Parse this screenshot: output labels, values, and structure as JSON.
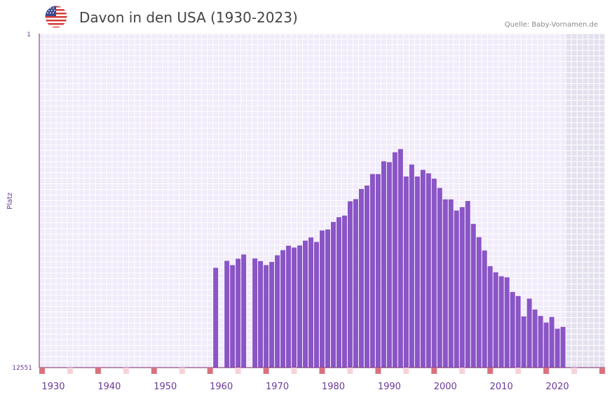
{
  "header": {
    "title": "Davon in den USA (1930-2023)",
    "source": "Quelle: Baby-Vornamen.de",
    "flag_icon": "us-flag-icon"
  },
  "colors": {
    "bar": "#8a55c6",
    "grid_bg": "#f1ebfa",
    "grid_line": "#ffffff",
    "axis": "#7a2a6a",
    "marker": "#d9727f",
    "marker_light": "#f6d3d8",
    "future_shade": "#e4e0ee",
    "tick_text": "#6a3a9a"
  },
  "chart_data": {
    "type": "bar",
    "title": "Davon in den USA (1930-2023)",
    "xlabel": "",
    "ylabel": "Platz",
    "y_axis_inverted": true,
    "ylim": [
      1,
      12551
    ],
    "y_tick_labels": [
      "1",
      "12551"
    ],
    "xlim": [
      1928,
      2029
    ],
    "x_tick_labels": [
      "1930",
      "1940",
      "1950",
      "1960",
      "1970",
      "1980",
      "1990",
      "2000",
      "2010",
      "2020"
    ],
    "x": [
      1959,
      1961,
      1962,
      1963,
      1964,
      1966,
      1967,
      1968,
      1969,
      1970,
      1971,
      1972,
      1973,
      1974,
      1975,
      1976,
      1977,
      1978,
      1979,
      1980,
      1981,
      1982,
      1983,
      1984,
      1985,
      1986,
      1987,
      1988,
      1989,
      1990,
      1991,
      1992,
      1993,
      1994,
      1995,
      1996,
      1997,
      1998,
      1999,
      2000,
      2001,
      2002,
      2003,
      2004,
      2005,
      2006,
      2007,
      2008,
      2009,
      2010,
      2011,
      2012,
      2013,
      2014,
      2015,
      2016,
      2017,
      2018,
      2019,
      2020,
      2021
    ],
    "values": [
      8800,
      8540,
      8700,
      8460,
      8300,
      8450,
      8550,
      8700,
      8580,
      8330,
      8140,
      7970,
      8040,
      7960,
      7780,
      7660,
      7830,
      7400,
      7360,
      7080,
      6900,
      6840,
      6300,
      6220,
      5840,
      5710,
      5280,
      5280,
      4800,
      4830,
      4460,
      4340,
      5370,
      4920,
      5370,
      5120,
      5250,
      5450,
      5800,
      6230,
      6230,
      6650,
      6520,
      6290,
      7150,
      7650,
      8150,
      8740,
      8970,
      9120,
      9160,
      9710,
      9860,
      10630,
      9960,
      10370,
      10610,
      10860,
      10650,
      11090,
      11020
    ]
  }
}
